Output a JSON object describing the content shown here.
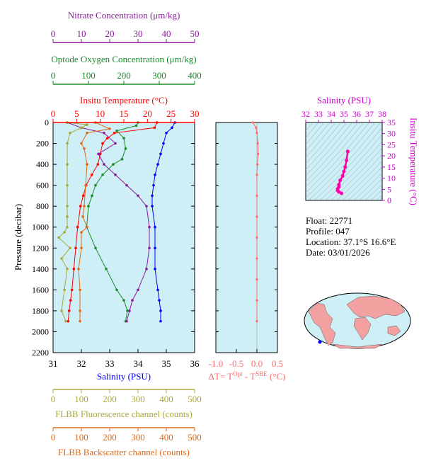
{
  "colors": {
    "plot_bg": "#cfeff6",
    "nitrate": "#8b1a9a",
    "oxygen": "#1a8a2a",
    "temperature": "#ff0000",
    "salinity": "#0000ff",
    "fluorescence": "#a8a83a",
    "backscatter": "#e06a1a",
    "delta_t": "#ff6a6a",
    "ts_profile": "#ff00aa",
    "ts_axis": "#cc00cc",
    "land": "#f2a0a0"
  },
  "info": {
    "float": "Float:  22771",
    "profile": "Profile:  047",
    "location": "Location:  37.1°S  16.6°E",
    "date": "Date:  03/01/2026"
  },
  "chart_data": [
    {
      "type": "line",
      "name": "main-profile",
      "ylabel": "Pressure (decibar)",
      "ylim": [
        2200,
        0
      ],
      "yticks": [
        "0",
        "200",
        "400",
        "600",
        "800",
        "1000",
        "1200",
        "1400",
        "1600",
        "1800",
        "2000",
        "2200"
      ],
      "axes": {
        "nitrate": {
          "label": "Nitrate Concentration (μm/kg)",
          "range": [
            0,
            50
          ],
          "ticks": [
            "0",
            "10",
            "20",
            "30",
            "40",
            "50"
          ]
        },
        "oxygen": {
          "label": "Optode Oxygen Concentration (μm/kg)",
          "range": [
            0,
            400
          ],
          "ticks": [
            "0",
            "100",
            "200",
            "300",
            "400"
          ]
        },
        "temperature": {
          "label": "Insitu Temperature (°C)",
          "range": [
            0,
            30
          ],
          "ticks": [
            "0",
            "5",
            "10",
            "15",
            "20",
            "25",
            "30"
          ]
        },
        "salinity": {
          "label": "Salinity (PSU)",
          "range": [
            31,
            36
          ],
          "ticks": [
            "31",
            "32",
            "33",
            "34",
            "35",
            "36"
          ]
        },
        "fluorescence": {
          "label": "FLBB Fluorescence channel (counts)",
          "range": [
            0,
            500
          ],
          "ticks": [
            "0",
            "100",
            "200",
            "300",
            "400",
            "500"
          ]
        },
        "backscatter": {
          "label": "FLBB Backscatter channel (counts)",
          "range": [
            0,
            500
          ],
          "ticks": [
            "0",
            "100",
            "200",
            "300",
            "400",
            "500"
          ]
        }
      },
      "series": [
        {
          "axis": "temperature",
          "x": [
            22,
            21.5,
            13,
            11.5,
            10.5,
            10,
            9.5,
            8.2,
            7,
            6.4,
            5.8,
            5.2,
            4.8,
            4.4,
            4.0,
            3.7,
            3.4,
            3.2
          ],
          "y": [
            0,
            50,
            100,
            150,
            200,
            300,
            400,
            500,
            600,
            700,
            800,
            1000,
            1200,
            1400,
            1600,
            1700,
            1800,
            1900
          ]
        },
        {
          "axis": "salinity",
          "x": [
            35.3,
            35.2,
            35.0,
            34.9,
            34.8,
            34.7,
            34.6,
            34.55,
            34.5,
            34.5,
            34.6,
            34.6,
            34.6,
            34.7,
            34.75,
            34.8,
            34.8
          ],
          "y": [
            0,
            50,
            100,
            200,
            300,
            400,
            500,
            600,
            700,
            800,
            1000,
            1200,
            1400,
            1600,
            1700,
            1800,
            1900
          ]
        },
        {
          "axis": "oxygen",
          "x": [
            240,
            235,
            180,
            200,
            205,
            195,
            170,
            140,
            120,
            110,
            100,
            95,
            120,
            150,
            180,
            200,
            210,
            205
          ],
          "y": [
            0,
            30,
            80,
            150,
            250,
            350,
            400,
            500,
            600,
            700,
            800,
            1000,
            1200,
            1400,
            1600,
            1700,
            1800,
            1900
          ]
        },
        {
          "axis": "nitrate",
          "x": [
            5,
            10,
            18,
            22,
            16,
            18,
            22,
            26,
            30,
            33,
            34,
            34,
            33,
            30,
            28,
            27,
            26
          ],
          "y": [
            0,
            50,
            100,
            200,
            300,
            400,
            500,
            600,
            700,
            800,
            1000,
            1200,
            1400,
            1600,
            1700,
            1800,
            1900
          ]
        },
        {
          "axis": "fluorescence",
          "x": [
            50,
            120,
            100,
            60,
            50,
            50,
            50,
            50,
            50,
            50,
            40,
            20,
            60,
            30,
            50,
            40,
            30,
            45
          ],
          "y": [
            0,
            20,
            50,
            100,
            200,
            400,
            600,
            800,
            900,
            1000,
            1050,
            1100,
            1200,
            1300,
            1400,
            1600,
            1800,
            1900
          ]
        },
        {
          "axis": "backscatter",
          "x": [
            150,
            200,
            120,
            100,
            110,
            120,
            115,
            110,
            105,
            120,
            100,
            100,
            90,
            95,
            95,
            95
          ],
          "y": [
            0,
            60,
            100,
            200,
            250,
            400,
            600,
            800,
            900,
            1000,
            1050,
            1200,
            1400,
            1600,
            1800,
            1900
          ]
        }
      ]
    },
    {
      "type": "line",
      "name": "delta-t",
      "xlabel": "ΔT= T^Opt - T^SBE (°C)",
      "xlim": [
        -1.0,
        0.5
      ],
      "xticks": [
        "-1.0",
        "-0.5",
        "0.0",
        "0.5"
      ],
      "series": [
        {
          "x": [
            -0.1,
            -0.02,
            0.0,
            0.02,
            0.03,
            0.01,
            0.0,
            0.0,
            0.0,
            0.0,
            0.0,
            0.0,
            0.0,
            0.0
          ],
          "y": [
            0,
            50,
            100,
            200,
            300,
            400,
            500,
            700,
            900,
            1100,
            1300,
            1500,
            1700,
            1900
          ]
        }
      ]
    },
    {
      "type": "scatter",
      "name": "ts-diagram",
      "xlabel": "Salinity (PSU)",
      "ylabel": "Insitu Temperature (°C)",
      "xlim": [
        32,
        38
      ],
      "ylim": [
        0,
        35
      ],
      "xticks": [
        "32",
        "33",
        "34",
        "35",
        "36",
        "37",
        "38"
      ],
      "yticks": [
        "0",
        "5",
        "10",
        "15",
        "20",
        "25",
        "30",
        "35"
      ],
      "series": [
        {
          "x": [
            34.8,
            34.6,
            34.5,
            34.5,
            34.6,
            34.6,
            34.7,
            34.9,
            35.0,
            35.1,
            35.2,
            35.3
          ],
          "y": [
            3.2,
            3.8,
            4.5,
            5.2,
            6,
            7,
            9,
            11,
            13,
            15,
            18,
            22
          ]
        }
      ]
    }
  ]
}
